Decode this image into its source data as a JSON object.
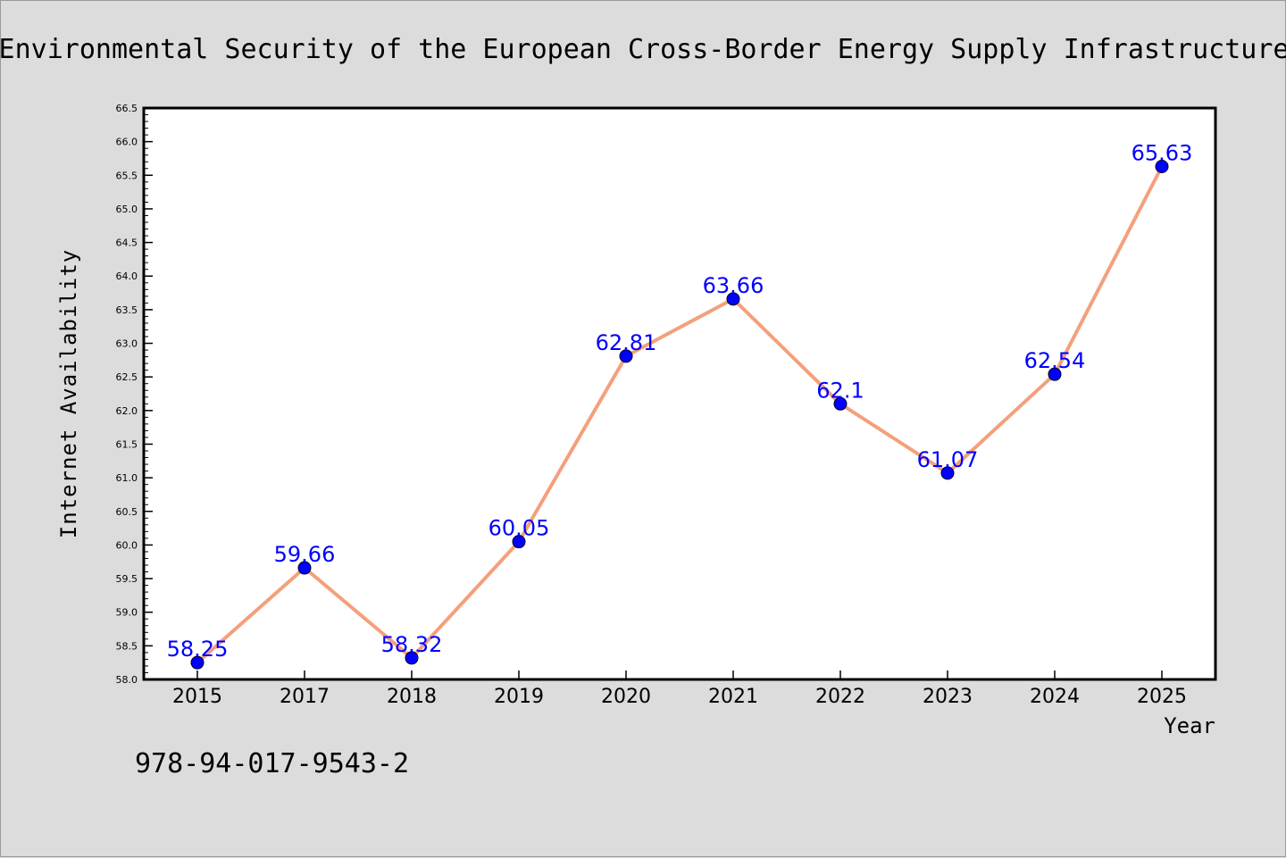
{
  "chart_data": {
    "type": "line",
    "title": "Environmental Security of the European Cross-Border Energy Supply Infrastructure",
    "xlabel": "Year",
    "ylabel": "Internet Availability",
    "categories": [
      "2015",
      "2017",
      "2018",
      "2019",
      "2020",
      "2021",
      "2022",
      "2023",
      "2024",
      "2025"
    ],
    "series": [
      {
        "values": [
          58.25,
          59.66,
          58.32,
          60.05,
          62.81,
          63.66,
          62.1,
          61.07,
          62.54,
          65.63
        ],
        "labels": [
          "58.25",
          "59.66",
          "58.32",
          "60.05",
          "62.81",
          "63.66",
          "62.1",
          "61.07",
          "62.54",
          "65.63"
        ],
        "line_color": "#f4a07c",
        "marker_color": "#0000ff"
      }
    ],
    "ylim": [
      58.0,
      66.5
    ],
    "yticks": [
      "58.0",
      "58.5",
      "59.0",
      "59.5",
      "60.0",
      "60.5",
      "61.0",
      "61.5",
      "62.0",
      "62.5",
      "63.0",
      "63.5",
      "64.0",
      "64.5",
      "65.0",
      "65.5",
      "66.0",
      "66.5"
    ],
    "grid": false,
    "legend": "none"
  },
  "footer": {
    "isbn": "978-94-017-9543-2"
  }
}
